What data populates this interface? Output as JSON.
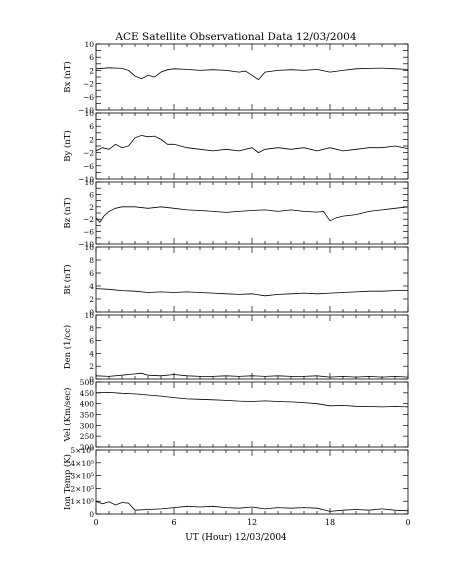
{
  "chart_data": {
    "type": "line",
    "title": "ACE Satellite Observational Data   12/03/2004",
    "xlabel": "UT (Hour)   12/03/2004",
    "x_ticks": [
      "0",
      "6",
      "12",
      "18",
      "0"
    ],
    "xlim": [
      0,
      24
    ],
    "panels": [
      {
        "id": "bx",
        "ylabel": "Bx (nT)",
        "ylim": [
          -10,
          10
        ],
        "ytick_values": [
          -10,
          -8,
          -6,
          -4,
          -2,
          0,
          2,
          4,
          6,
          8,
          10
        ],
        "ytick_labels": [
          "−10",
          "",
          "−6",
          "",
          "−2",
          "",
          "2",
          "",
          "6",
          "",
          "10"
        ],
        "series": {
          "x": [
            0,
            1,
            2,
            2.5,
            3,
            3.5,
            4,
            4.5,
            5,
            5.5,
            6,
            7,
            8,
            9,
            10,
            11,
            11.5,
            12,
            12.5,
            13,
            14,
            15,
            16,
            17,
            18,
            19,
            20,
            21,
            22,
            23,
            24
          ],
          "y": [
            2.5,
            2.8,
            2.6,
            2.0,
            0.3,
            -0.5,
            0.5,
            0,
            1.5,
            2.2,
            2.5,
            2.3,
            2.0,
            2.2,
            2.0,
            1.5,
            1.8,
            0.5,
            -0.8,
            1.5,
            2.0,
            2.2,
            2.0,
            2.3,
            1.5,
            2.0,
            2.5,
            2.6,
            2.7,
            2.5,
            2.3
          ]
        }
      },
      {
        "id": "by",
        "ylabel": "By (nT)",
        "ylim": [
          -10,
          10
        ],
        "ytick_values": [
          -10,
          -8,
          -6,
          -4,
          -2,
          0,
          2,
          4,
          6,
          8,
          10
        ],
        "ytick_labels": [
          "−10",
          "",
          "−6",
          "",
          "−2",
          "",
          "2",
          "",
          "6",
          "",
          "10"
        ],
        "series": {
          "x": [
            0,
            0.5,
            1,
            1.5,
            2,
            2.5,
            3,
            3.5,
            4,
            4.5,
            5,
            5.5,
            6,
            7,
            8,
            9,
            10,
            11,
            12,
            12.5,
            13,
            14,
            15,
            16,
            17,
            18,
            19,
            20,
            21,
            22,
            23,
            24
          ],
          "y": [
            -1.5,
            -0.5,
            -1.0,
            0.5,
            -0.5,
            0,
            2.5,
            3.2,
            2.8,
            3.0,
            2.0,
            0.5,
            0.5,
            -0.5,
            -1.0,
            -1.5,
            -1.0,
            -1.5,
            -0.5,
            -2.0,
            -1.0,
            -0.5,
            -1.0,
            -0.5,
            -1.5,
            -0.5,
            -1.5,
            -1.0,
            -0.5,
            -0.5,
            0,
            -0.8
          ]
        }
      },
      {
        "id": "bz",
        "ylabel": "Bz (nT)",
        "ylim": [
          -10,
          10
        ],
        "ytick_values": [
          -10,
          -8,
          -6,
          -4,
          -2,
          0,
          2,
          4,
          6,
          8,
          10
        ],
        "ytick_labels": [
          "−10",
          "",
          "−6",
          "",
          "−2",
          "",
          "2",
          "",
          "6",
          "",
          "10"
        ],
        "series": {
          "x": [
            0,
            0.3,
            0.6,
            1,
            1.5,
            2,
            3,
            4,
            5,
            6,
            7,
            8,
            9,
            10,
            11,
            12,
            13,
            14,
            15,
            16,
            17,
            17.5,
            18,
            18.5,
            19,
            20,
            21,
            22,
            23,
            24
          ],
          "y": [
            -1.5,
            -3.0,
            -1.0,
            0.5,
            1.5,
            2.0,
            2.0,
            1.5,
            2.0,
            1.5,
            1.0,
            0.8,
            0.5,
            0.2,
            0.5,
            0.8,
            1.0,
            0.5,
            1.0,
            0.5,
            0.3,
            0.5,
            -2.5,
            -1.5,
            -1.0,
            -0.5,
            0.5,
            1.0,
            1.5,
            2.0
          ]
        }
      },
      {
        "id": "bt",
        "ylabel": "Bt (nT)",
        "ylim": [
          0,
          10
        ],
        "ytick_values": [
          0,
          2,
          4,
          6,
          8,
          10
        ],
        "ytick_labels": [
          "0",
          "2",
          "4",
          "6",
          "8",
          "10"
        ],
        "series": {
          "x": [
            0,
            1,
            2,
            3,
            4,
            5,
            6,
            7,
            8,
            9,
            10,
            11,
            12,
            13,
            14,
            15,
            16,
            17,
            18,
            19,
            20,
            21,
            22,
            23,
            24
          ],
          "y": [
            3.6,
            3.5,
            3.3,
            3.2,
            3.0,
            3.1,
            3.0,
            3.1,
            3.0,
            2.9,
            2.8,
            2.7,
            2.8,
            2.5,
            2.7,
            2.8,
            2.9,
            2.8,
            2.9,
            3.0,
            3.1,
            3.2,
            3.2,
            3.3,
            3.3
          ]
        }
      },
      {
        "id": "den",
        "ylabel": "Den (1/cc)",
        "ylim": [
          0,
          10
        ],
        "ytick_values": [
          0,
          2,
          4,
          6,
          8,
          10
        ],
        "ytick_labels": [
          "0",
          "2",
          "4",
          "6",
          "8",
          "10"
        ],
        "series": {
          "x": [
            0,
            1,
            2,
            2.5,
            3,
            3.5,
            4,
            5,
            6,
            7,
            8,
            9,
            10,
            11,
            12,
            13,
            14,
            15,
            16,
            17,
            18,
            19,
            20,
            21,
            22,
            23,
            24
          ],
          "y": [
            0.5,
            0.4,
            0.6,
            0.7,
            0.8,
            0.9,
            0.6,
            0.5,
            0.7,
            0.5,
            0.4,
            0.4,
            0.5,
            0.4,
            0.5,
            0.4,
            0.5,
            0.4,
            0.4,
            0.5,
            0.3,
            0.4,
            0.3,
            0.4,
            0.3,
            0.4,
            0.3
          ]
        }
      },
      {
        "id": "vel",
        "ylabel": "Vel (Km/sec)",
        "ylim": [
          200,
          500
        ],
        "ytick_values": [
          200,
          250,
          300,
          350,
          400,
          450,
          500
        ],
        "ytick_labels": [
          "200",
          "250",
          "300",
          "350",
          "400",
          "450",
          "500"
        ],
        "series": {
          "x": [
            0,
            1,
            2,
            3,
            4,
            5,
            6,
            7,
            8,
            9,
            10,
            11,
            12,
            13,
            14,
            15,
            16,
            17,
            18,
            19,
            20,
            21,
            22,
            23,
            24
          ],
          "y": [
            450,
            452,
            448,
            445,
            440,
            435,
            428,
            422,
            420,
            418,
            415,
            412,
            410,
            413,
            410,
            408,
            405,
            400,
            390,
            392,
            388,
            387,
            385,
            387,
            385
          ]
        }
      },
      {
        "id": "temp",
        "ylabel": "Ion Temp (K)",
        "ylim": [
          0,
          500000
        ],
        "ytick_values": [
          0,
          100000,
          200000,
          300000,
          400000,
          500000
        ],
        "ytick_labels": [
          "0",
          "1×10⁵",
          "2×10⁵",
          "3×10⁵",
          "4×10⁵",
          "5×10⁵"
        ],
        "series": {
          "x": [
            0,
            0.5,
            1,
            1.5,
            2,
            2.5,
            3,
            4,
            5,
            6,
            7,
            8,
            9,
            10,
            11,
            12,
            13,
            14,
            15,
            16,
            17,
            18,
            19,
            20,
            21,
            22,
            23,
            24
          ],
          "y": [
            100000,
            80000,
            95000,
            70000,
            90000,
            85000,
            30000,
            35000,
            40000,
            50000,
            60000,
            55000,
            60000,
            50000,
            45000,
            55000,
            40000,
            50000,
            45000,
            50000,
            45000,
            20000,
            30000,
            35000,
            30000,
            40000,
            30000,
            25000
          ]
        }
      }
    ]
  }
}
